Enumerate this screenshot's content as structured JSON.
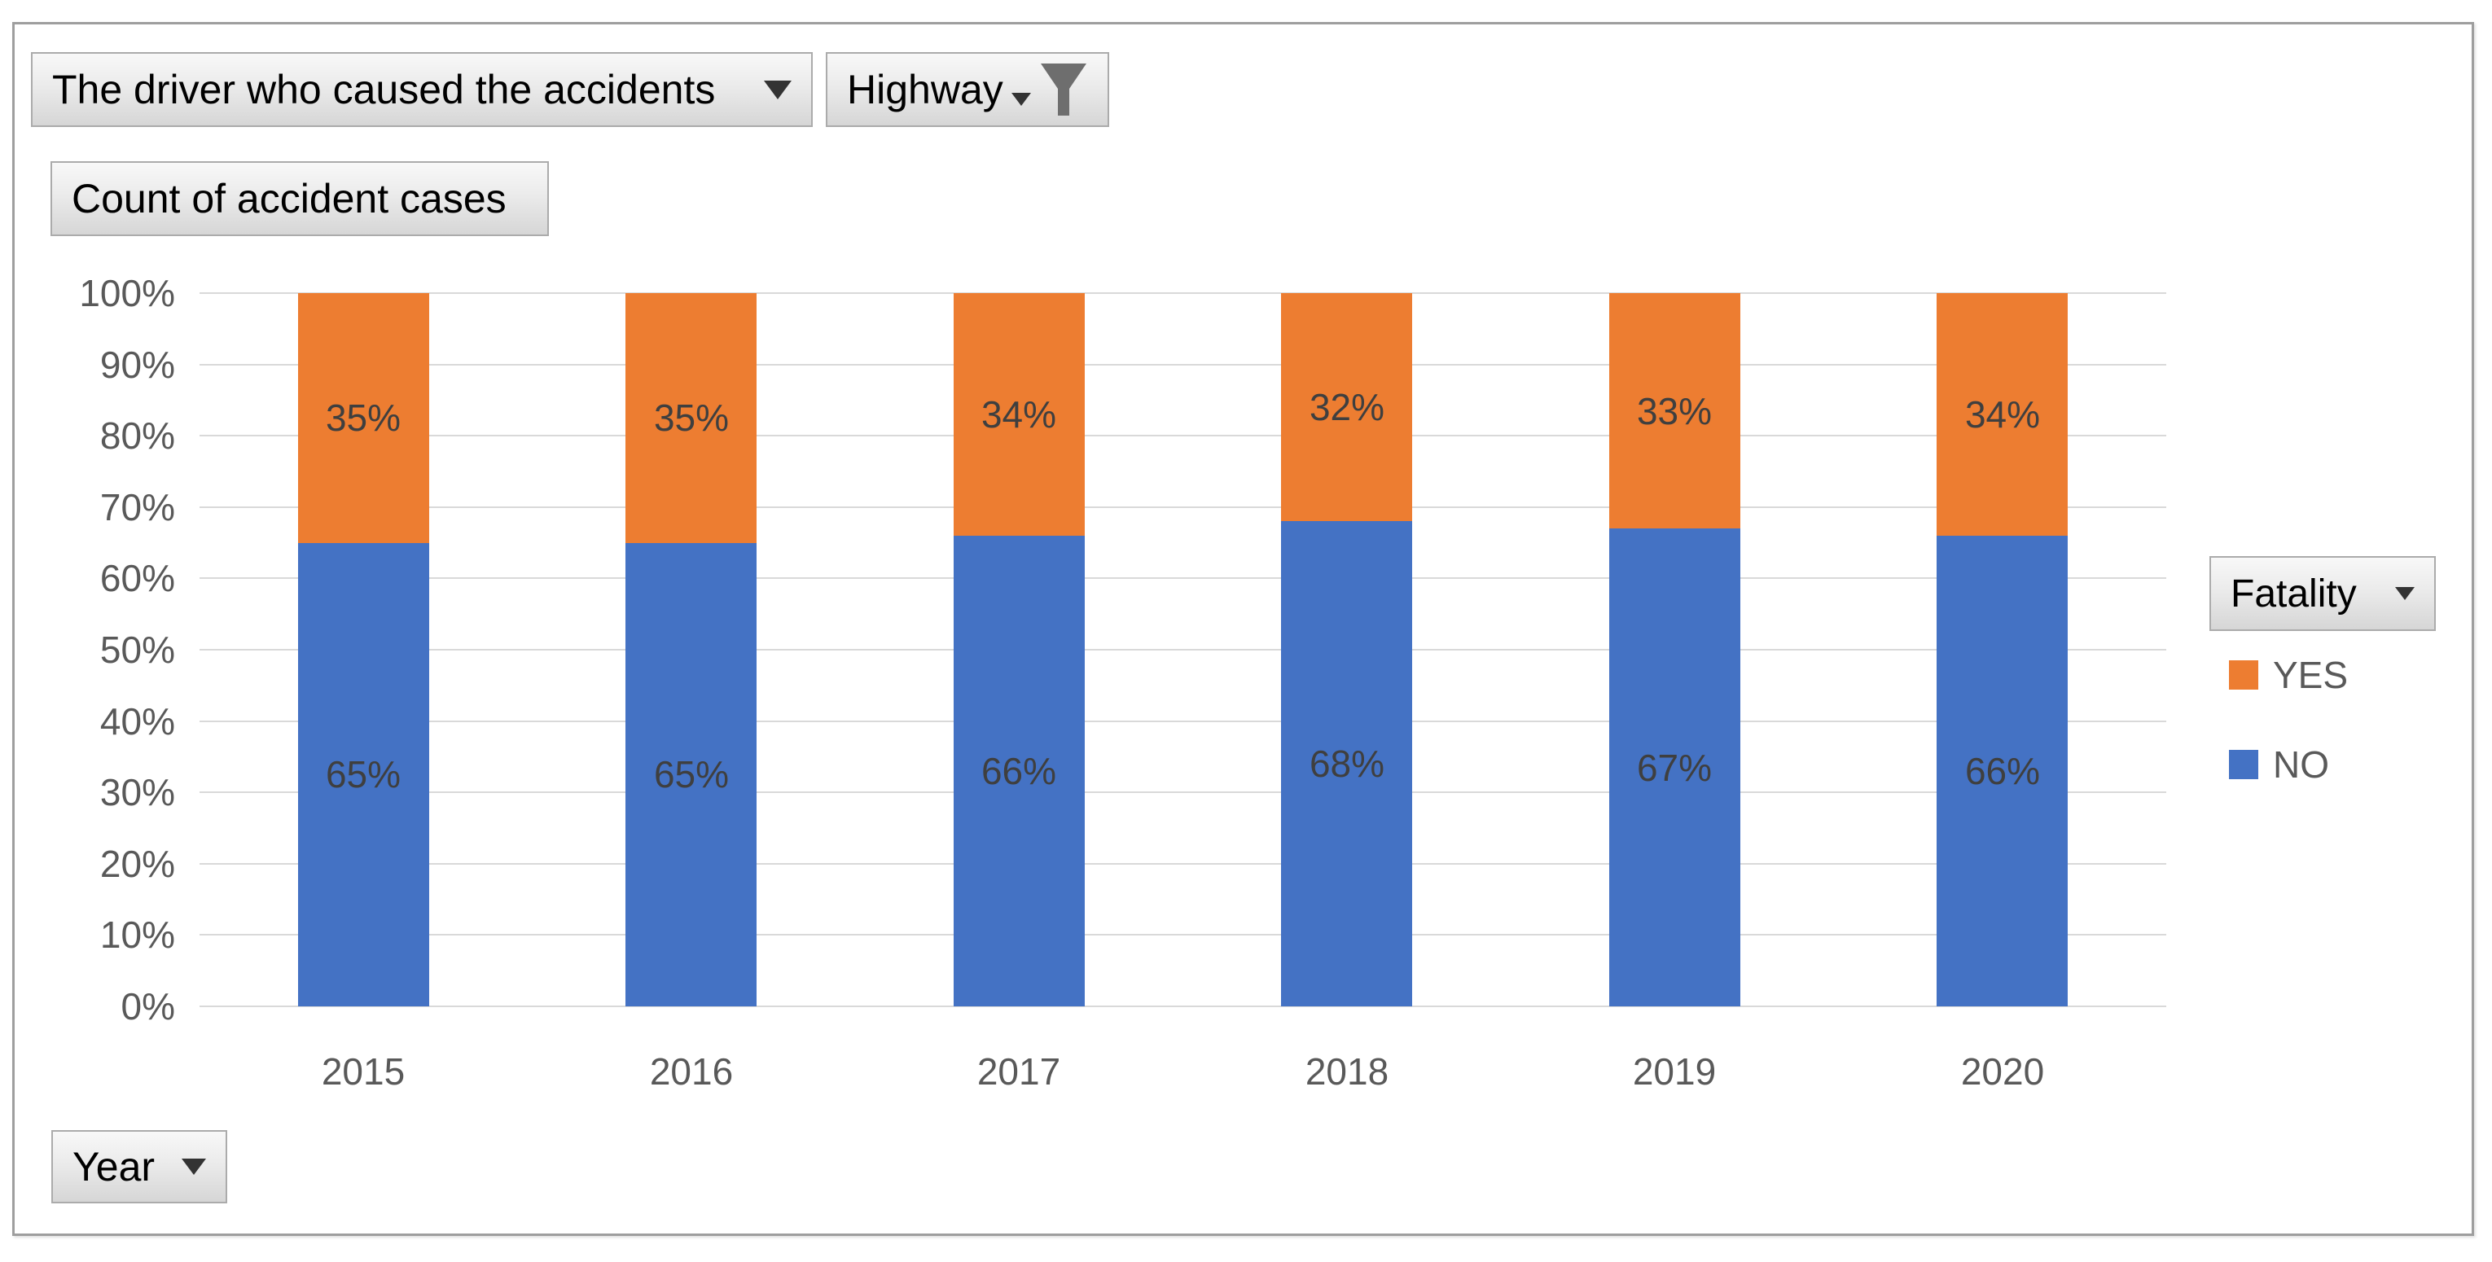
{
  "buttons": {
    "report_filter": "The driver who caused the accidents",
    "highway_filter": "Highway",
    "values_field": "Count of accident cases",
    "axis_field": "Year",
    "legend_field": "Fatality"
  },
  "legend": {
    "items": [
      {
        "label": "YES",
        "color": "#ED7D31"
      },
      {
        "label": "NO",
        "color": "#4472C4"
      }
    ]
  },
  "chart_data": {
    "type": "bar",
    "stacked": true,
    "stacked_percent": true,
    "title": "",
    "xlabel": "Year",
    "ylabel": "Count of accident cases",
    "categories": [
      "2015",
      "2016",
      "2017",
      "2018",
      "2019",
      "2020"
    ],
    "series": [
      {
        "name": "NO",
        "color": "#4472C4",
        "values": [
          65,
          65,
          66,
          68,
          67,
          66
        ]
      },
      {
        "name": "YES",
        "color": "#ED7D31",
        "values": [
          35,
          35,
          34,
          32,
          33,
          34
        ]
      }
    ],
    "value_label_suffix": "%",
    "y_ticks": [
      "0%",
      "10%",
      "20%",
      "30%",
      "40%",
      "50%",
      "60%",
      "70%",
      "80%",
      "90%",
      "100%"
    ],
    "ylim": [
      0,
      100
    ],
    "grid": true,
    "legend_title": "Fatality",
    "legend_position": "right"
  }
}
